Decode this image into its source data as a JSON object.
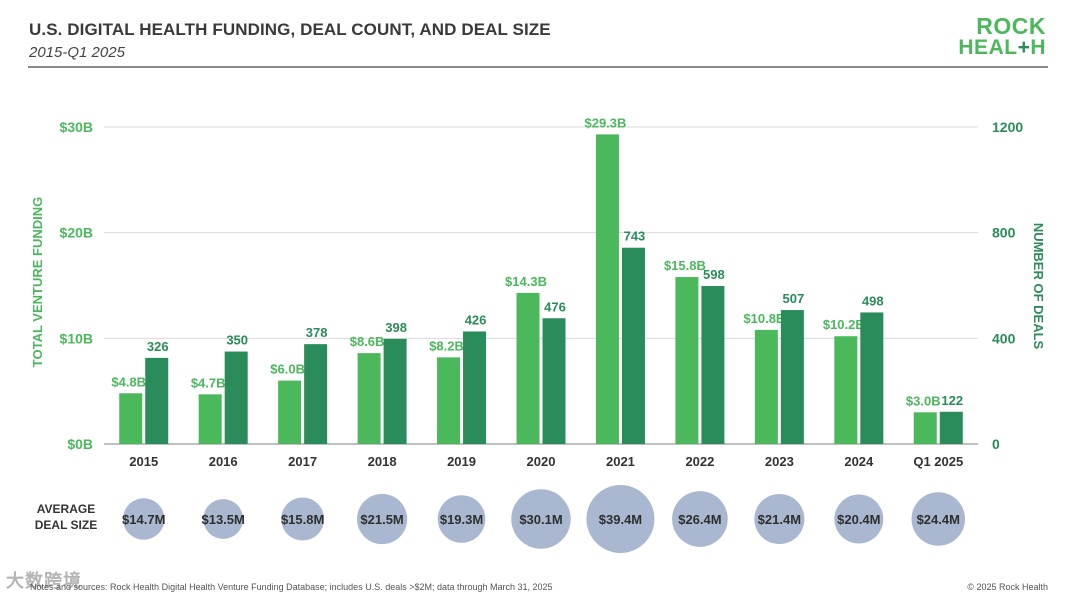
{
  "header": {
    "title": "U.S. DIGITAL HEALTH FUNDING, DEAL COUNT, AND DEAL SIZE",
    "subtitle": "2015-Q1 2025"
  },
  "logo": {
    "line1": "ROCK",
    "line2_a": "HEAL",
    "line2_plus": "+",
    "line2_b": "H"
  },
  "footer": {
    "note": "Notes and sources: Rock Health Digital Health Venture Funding Database; includes U.S. deals >$2M; data through March 31, 2025",
    "copyright": "© 2025 Rock Health",
    "watermark": "大数跨境"
  },
  "colors": {
    "funding_bar": "#4cb85c",
    "deals_bar": "#2a8c5a",
    "bubble": "#a9b8d0",
    "grid": "#d9d9d9"
  },
  "chart_data": {
    "type": "bar",
    "categories": [
      "2015",
      "2016",
      "2017",
      "2018",
      "2019",
      "2020",
      "2021",
      "2022",
      "2023",
      "2024",
      "Q1 2025"
    ],
    "series": [
      {
        "name": "TOTAL VENTURE FUNDING",
        "axis": "left",
        "values": [
          4.8,
          4.7,
          6.0,
          8.6,
          8.2,
          14.3,
          29.3,
          15.8,
          10.8,
          10.2,
          3.0
        ],
        "labels": [
          "$4.8B",
          "$4.7B",
          "$6.0B",
          "$8.6B",
          "$8.2B",
          "$14.3B",
          "$29.3B",
          "$15.8B",
          "$10.8B",
          "$10.2B",
          "$3.0B"
        ]
      },
      {
        "name": "NUMBER OF DEALS",
        "axis": "right",
        "values": [
          326,
          350,
          378,
          398,
          426,
          476,
          743,
          598,
          507,
          498,
          122
        ],
        "labels": [
          "326",
          "350",
          "378",
          "398",
          "426",
          "476",
          "743",
          "598",
          "507",
          "498",
          "122"
        ]
      }
    ],
    "average_deal_size": {
      "label_line1": "AVERAGE",
      "label_line2": "DEAL SIZE",
      "values": [
        14.7,
        13.5,
        15.8,
        21.5,
        19.3,
        30.1,
        39.4,
        26.4,
        21.4,
        20.4,
        24.4
      ],
      "labels": [
        "$14.7M",
        "$13.5M",
        "$15.8M",
        "$21.5M",
        "$19.3M",
        "$30.1M",
        "$39.4M",
        "$26.4M",
        "$21.4M",
        "$20.4M",
        "$24.4M"
      ]
    },
    "y_left": {
      "label": "TOTAL VENTURE FUNDING",
      "range": [
        0,
        30
      ],
      "ticks": [
        0,
        10,
        20,
        30
      ],
      "tick_labels": [
        "$0B",
        "$10B",
        "$20B",
        "$30B"
      ]
    },
    "y_right": {
      "label": "NUMBER OF DEALS",
      "range": [
        0,
        1200
      ],
      "ticks": [
        0,
        400,
        800,
        1200
      ],
      "tick_labels": [
        "0",
        "400",
        "800",
        "1200"
      ]
    },
    "grid": true
  }
}
